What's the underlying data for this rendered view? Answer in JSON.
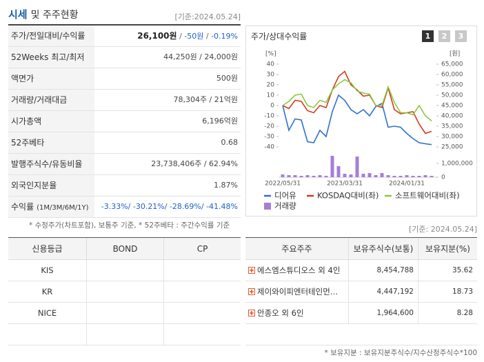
{
  "header": {
    "title_main": "시세",
    "title_rest": "및 주주현황",
    "date": "[기준:2024.05.24]"
  },
  "price_table": {
    "rows": [
      {
        "label": "주가/전일대비/수익률",
        "value": [
          "26,100원",
          " / ",
          "-50원",
          " / ",
          "-0.19%"
        ]
      },
      {
        "label": "52Weeks 최고/최저",
        "value": "44,250원 / 24,000원"
      },
      {
        "label": "액면가",
        "value": "500원"
      },
      {
        "label": "거래량/거래대금",
        "value": "78,304주 / 21억원"
      },
      {
        "label": "시가총액",
        "value": "6,196억원"
      },
      {
        "label": "52주베타",
        "value": "0.68"
      },
      {
        "label": "발행주식수/유동비율",
        "value": "23,738,406주 / 62.94%"
      },
      {
        "label": "외국인지분율",
        "value": "1.87%"
      },
      {
        "label": "수익률",
        "sublabel": "(1M/3M/6M/1Y)",
        "value": "-3.33%/ -30.21%/ -28.69%/ -41.48%"
      }
    ],
    "note": "* 수정주가(차트포함), 보통주 기준, * 52주베타 : 주간수익률 기준"
  },
  "chart_panel": {
    "title": "주가/상대수익률",
    "buttons": [
      "1",
      "2",
      "3"
    ]
  },
  "chart_data": {
    "type": "line",
    "ylabel": "[%]",
    "y2label": "[원]",
    "categories": [
      "2022/05/31",
      null,
      null,
      null,
      null,
      null,
      null,
      null,
      null,
      null,
      "2023/03/31",
      null,
      null,
      null,
      null,
      null,
      null,
      null,
      null,
      null,
      "2024/01/31",
      null,
      null,
      null,
      null
    ],
    "ylim": [
      -40,
      40
    ],
    "yticks": [
      40,
      30,
      20,
      10,
      0,
      -10,
      -20,
      -30,
      -40
    ],
    "y2lim": [
      25000,
      65000
    ],
    "y2ticks": [
      {
        "value": 65000,
        "label": "65,000"
      },
      {
        "value": 60000,
        "label": "60,000"
      },
      {
        "value": 55000,
        "label": "55,000"
      },
      {
        "value": 50000,
        "label": "50,000"
      },
      {
        "value": 45000,
        "label": "45,000"
      },
      {
        "value": 40000,
        "label": "40,000"
      },
      {
        "value": 35000,
        "label": "35,000"
      },
      {
        "value": 30000,
        "label": "30,000"
      },
      {
        "value": 25000,
        "label": "25,000"
      }
    ],
    "y3lim": [
      0,
      1750000
    ],
    "y3ticks": [
      {
        "value": 1000000,
        "label": "1,000,000"
      },
      0
    ],
    "series": [
      {
        "name": "디어유",
        "color": "#2f6fd0",
        "axis": "y2",
        "values": [
          45000,
          33000,
          38500,
          38000,
          27500,
          27000,
          33000,
          30000,
          42000,
          50000,
          47500,
          43000,
          41000,
          43000,
          40000,
          44500,
          46000,
          34500,
          35000,
          34500,
          31500,
          29000,
          27000,
          26500,
          26100
        ]
      },
      {
        "name": "KOSDAQ대비(좌)",
        "color": "#d23a1e",
        "axis": "y",
        "values": [
          0,
          -3,
          5,
          4,
          -5,
          -7,
          0,
          -2,
          15,
          28,
          33,
          20,
          15,
          9,
          10,
          0,
          -2,
          17,
          -4,
          -8,
          -7,
          -6,
          -18,
          -27,
          -25
        ]
      },
      {
        "name": "소프트웨어대비(좌)",
        "color": "#8cc63f",
        "axis": "y",
        "values": [
          0,
          4,
          10,
          11,
          0,
          -2,
          5,
          3,
          15,
          21,
          25,
          22,
          14,
          12,
          11,
          0,
          0,
          18,
          3,
          -7,
          -7,
          -9,
          0,
          -10,
          -15
        ]
      },
      {
        "name": "거래량",
        "color": "#a57fd6",
        "axis": "y3",
        "values": [
          200000,
          150000,
          150000,
          100000,
          150000,
          100000,
          150000,
          100000,
          1550000,
          800000,
          250000,
          200000,
          1500000,
          250000,
          300000,
          150000,
          300000,
          150000,
          100000,
          100000,
          150000,
          100000,
          100000,
          150000,
          100000
        ]
      }
    ]
  },
  "date2": "[기준: 2024.05.24]",
  "credit_table": {
    "headers": [
      "신용등급",
      "BOND",
      "CP"
    ],
    "agencies": [
      "KIS",
      "KR",
      "NICE"
    ]
  },
  "holder_table": {
    "headers": [
      "주요주주",
      "보유주식수(보통)",
      "보유지분(%)"
    ],
    "rows": [
      [
        "에스엠스튜디오스 외 4인",
        "8,454,788",
        "35.62"
      ],
      [
        "제이와이피엔터테인먼…",
        "4,447,192",
        "18.73"
      ],
      [
        "안종오 외 6인",
        "1,964,600",
        "8.28"
      ]
    ],
    "note": "* 보유지분 : 보유지분주식수/지수산정주식수*100"
  }
}
